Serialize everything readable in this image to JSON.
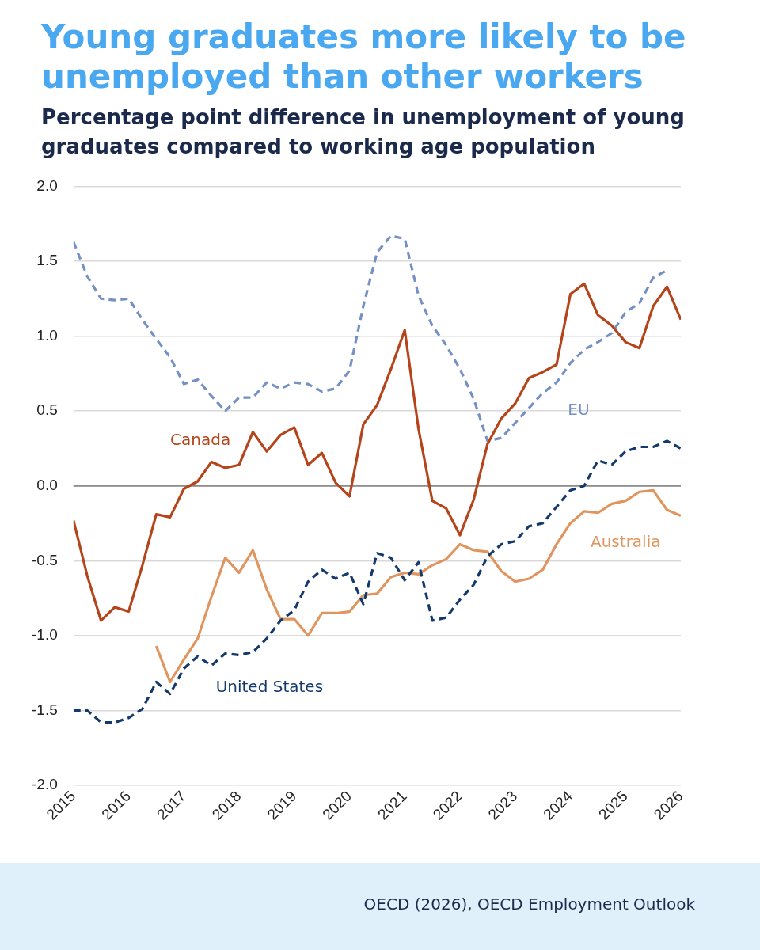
{
  "chart_data": {
    "type": "line",
    "title": "Young graduates more likely to be unemployed than other workers",
    "subtitle": "Percentage point difference in unemployment of young graduates compared to working age population",
    "x": [
      2015,
      2015.25,
      2015.5,
      2015.75,
      2016,
      2016.25,
      2016.5,
      2016.75,
      2017,
      2017.25,
      2017.5,
      2017.75,
      2018,
      2018.25,
      2018.5,
      2018.75,
      2019,
      2019.25,
      2019.5,
      2019.75,
      2020,
      2020.25,
      2020.5,
      2020.75,
      2021,
      2021.25,
      2021.5,
      2021.75,
      2022,
      2022.25,
      2022.5,
      2022.75,
      2023,
      2023.25,
      2023.5,
      2023.75,
      2024,
      2024.25,
      2024.5,
      2024.75,
      2025,
      2025.25,
      2025.5,
      2025.75,
      2026
    ],
    "series": [
      {
        "name": "Canada",
        "color": "#b5441a",
        "line_style": "solid",
        "values": [
          -0.23,
          -0.6,
          -0.9,
          -0.81,
          -0.84,
          -0.53,
          -0.19,
          -0.21,
          -0.02,
          0.03,
          0.16,
          0.12,
          0.14,
          0.36,
          0.23,
          0.34,
          0.39,
          0.14,
          0.22,
          0.02,
          -0.07,
          0.41,
          0.54,
          0.78,
          1.04,
          0.38,
          -0.1,
          -0.15,
          -0.33,
          -0.09,
          0.28,
          0.45,
          0.55,
          0.72,
          0.76,
          0.81,
          1.28,
          1.35,
          1.14,
          1.07,
          0.96,
          0.92,
          1.2,
          1.33,
          1.11
        ]
      },
      {
        "name": "EU",
        "color": "#7590c4",
        "line_style": "dashed",
        "values": [
          1.63,
          1.4,
          1.25,
          1.24,
          1.25,
          1.11,
          0.98,
          0.86,
          0.68,
          0.71,
          0.6,
          0.5,
          0.59,
          0.59,
          0.69,
          0.65,
          0.69,
          0.68,
          0.63,
          0.65,
          0.77,
          1.2,
          1.56,
          1.67,
          1.65,
          1.27,
          1.07,
          0.94,
          0.78,
          0.58,
          0.3,
          0.32,
          0.42,
          0.52,
          0.62,
          0.69,
          0.82,
          0.91,
          0.96,
          1.02,
          1.16,
          1.22,
          1.39,
          1.44,
          null
        ]
      },
      {
        "name": "United States",
        "color": "#143a6b",
        "line_style": "dashed",
        "values": [
          -1.5,
          -1.5,
          -1.58,
          -1.58,
          -1.55,
          -1.49,
          -1.31,
          -1.39,
          -1.22,
          -1.14,
          -1.2,
          -1.12,
          -1.13,
          -1.11,
          -1.02,
          -0.9,
          -0.83,
          -0.64,
          -0.56,
          -0.62,
          -0.58,
          -0.79,
          -0.45,
          -0.48,
          -0.63,
          -0.51,
          -0.9,
          -0.88,
          -0.76,
          -0.66,
          -0.47,
          -0.39,
          -0.37,
          -0.27,
          -0.25,
          -0.14,
          -0.03,
          0.0,
          0.17,
          0.14,
          0.23,
          0.26,
          0.26,
          0.3,
          0.25
        ]
      },
      {
        "name": "Australia",
        "color": "#e0955e",
        "line_style": "solid",
        "values": [
          null,
          null,
          null,
          null,
          null,
          null,
          -1.07,
          -1.31,
          -1.16,
          -1.02,
          -0.74,
          -0.48,
          -0.58,
          -0.43,
          -0.69,
          -0.89,
          -0.89,
          -1.0,
          -0.85,
          -0.85,
          -0.84,
          -0.73,
          -0.72,
          -0.61,
          -0.58,
          -0.59,
          -0.53,
          -0.49,
          -0.39,
          -0.43,
          -0.44,
          -0.57,
          -0.64,
          -0.62,
          -0.56,
          -0.39,
          -0.25,
          -0.17,
          -0.18,
          -0.12,
          -0.1,
          -0.04,
          -0.03,
          -0.16,
          -0.2
        ]
      }
    ],
    "xlim": [
      2015,
      2026
    ],
    "xticks": [
      2015,
      2016,
      2017,
      2018,
      2019,
      2020,
      2021,
      2022,
      2023,
      2024,
      2025,
      2026
    ],
    "ylim": [
      -2,
      2
    ],
    "yticks": [
      {
        "value": -2,
        "label": "-2.0"
      },
      {
        "value": -1.5,
        "label": "-1.5"
      },
      {
        "value": -1,
        "label": "-1.0"
      },
      {
        "value": -0.5,
        "label": "-0.5"
      },
      {
        "value": 0,
        "label": "0.0"
      },
      {
        "value": 0.5,
        "label": "0.5"
      },
      {
        "value": 1,
        "label": "1.0"
      },
      {
        "value": 1.5,
        "label": "1.5"
      },
      {
        "value": 2,
        "label": "2.0"
      }
    ],
    "ref_lines": [
      {
        "axis": "y",
        "value": 0,
        "color": "#8c8c8c"
      }
    ],
    "grid": "y",
    "legend": false,
    "marker": "none",
    "annotations": [
      "OECD (2026), OECD Employment Outlook"
    ]
  }
}
